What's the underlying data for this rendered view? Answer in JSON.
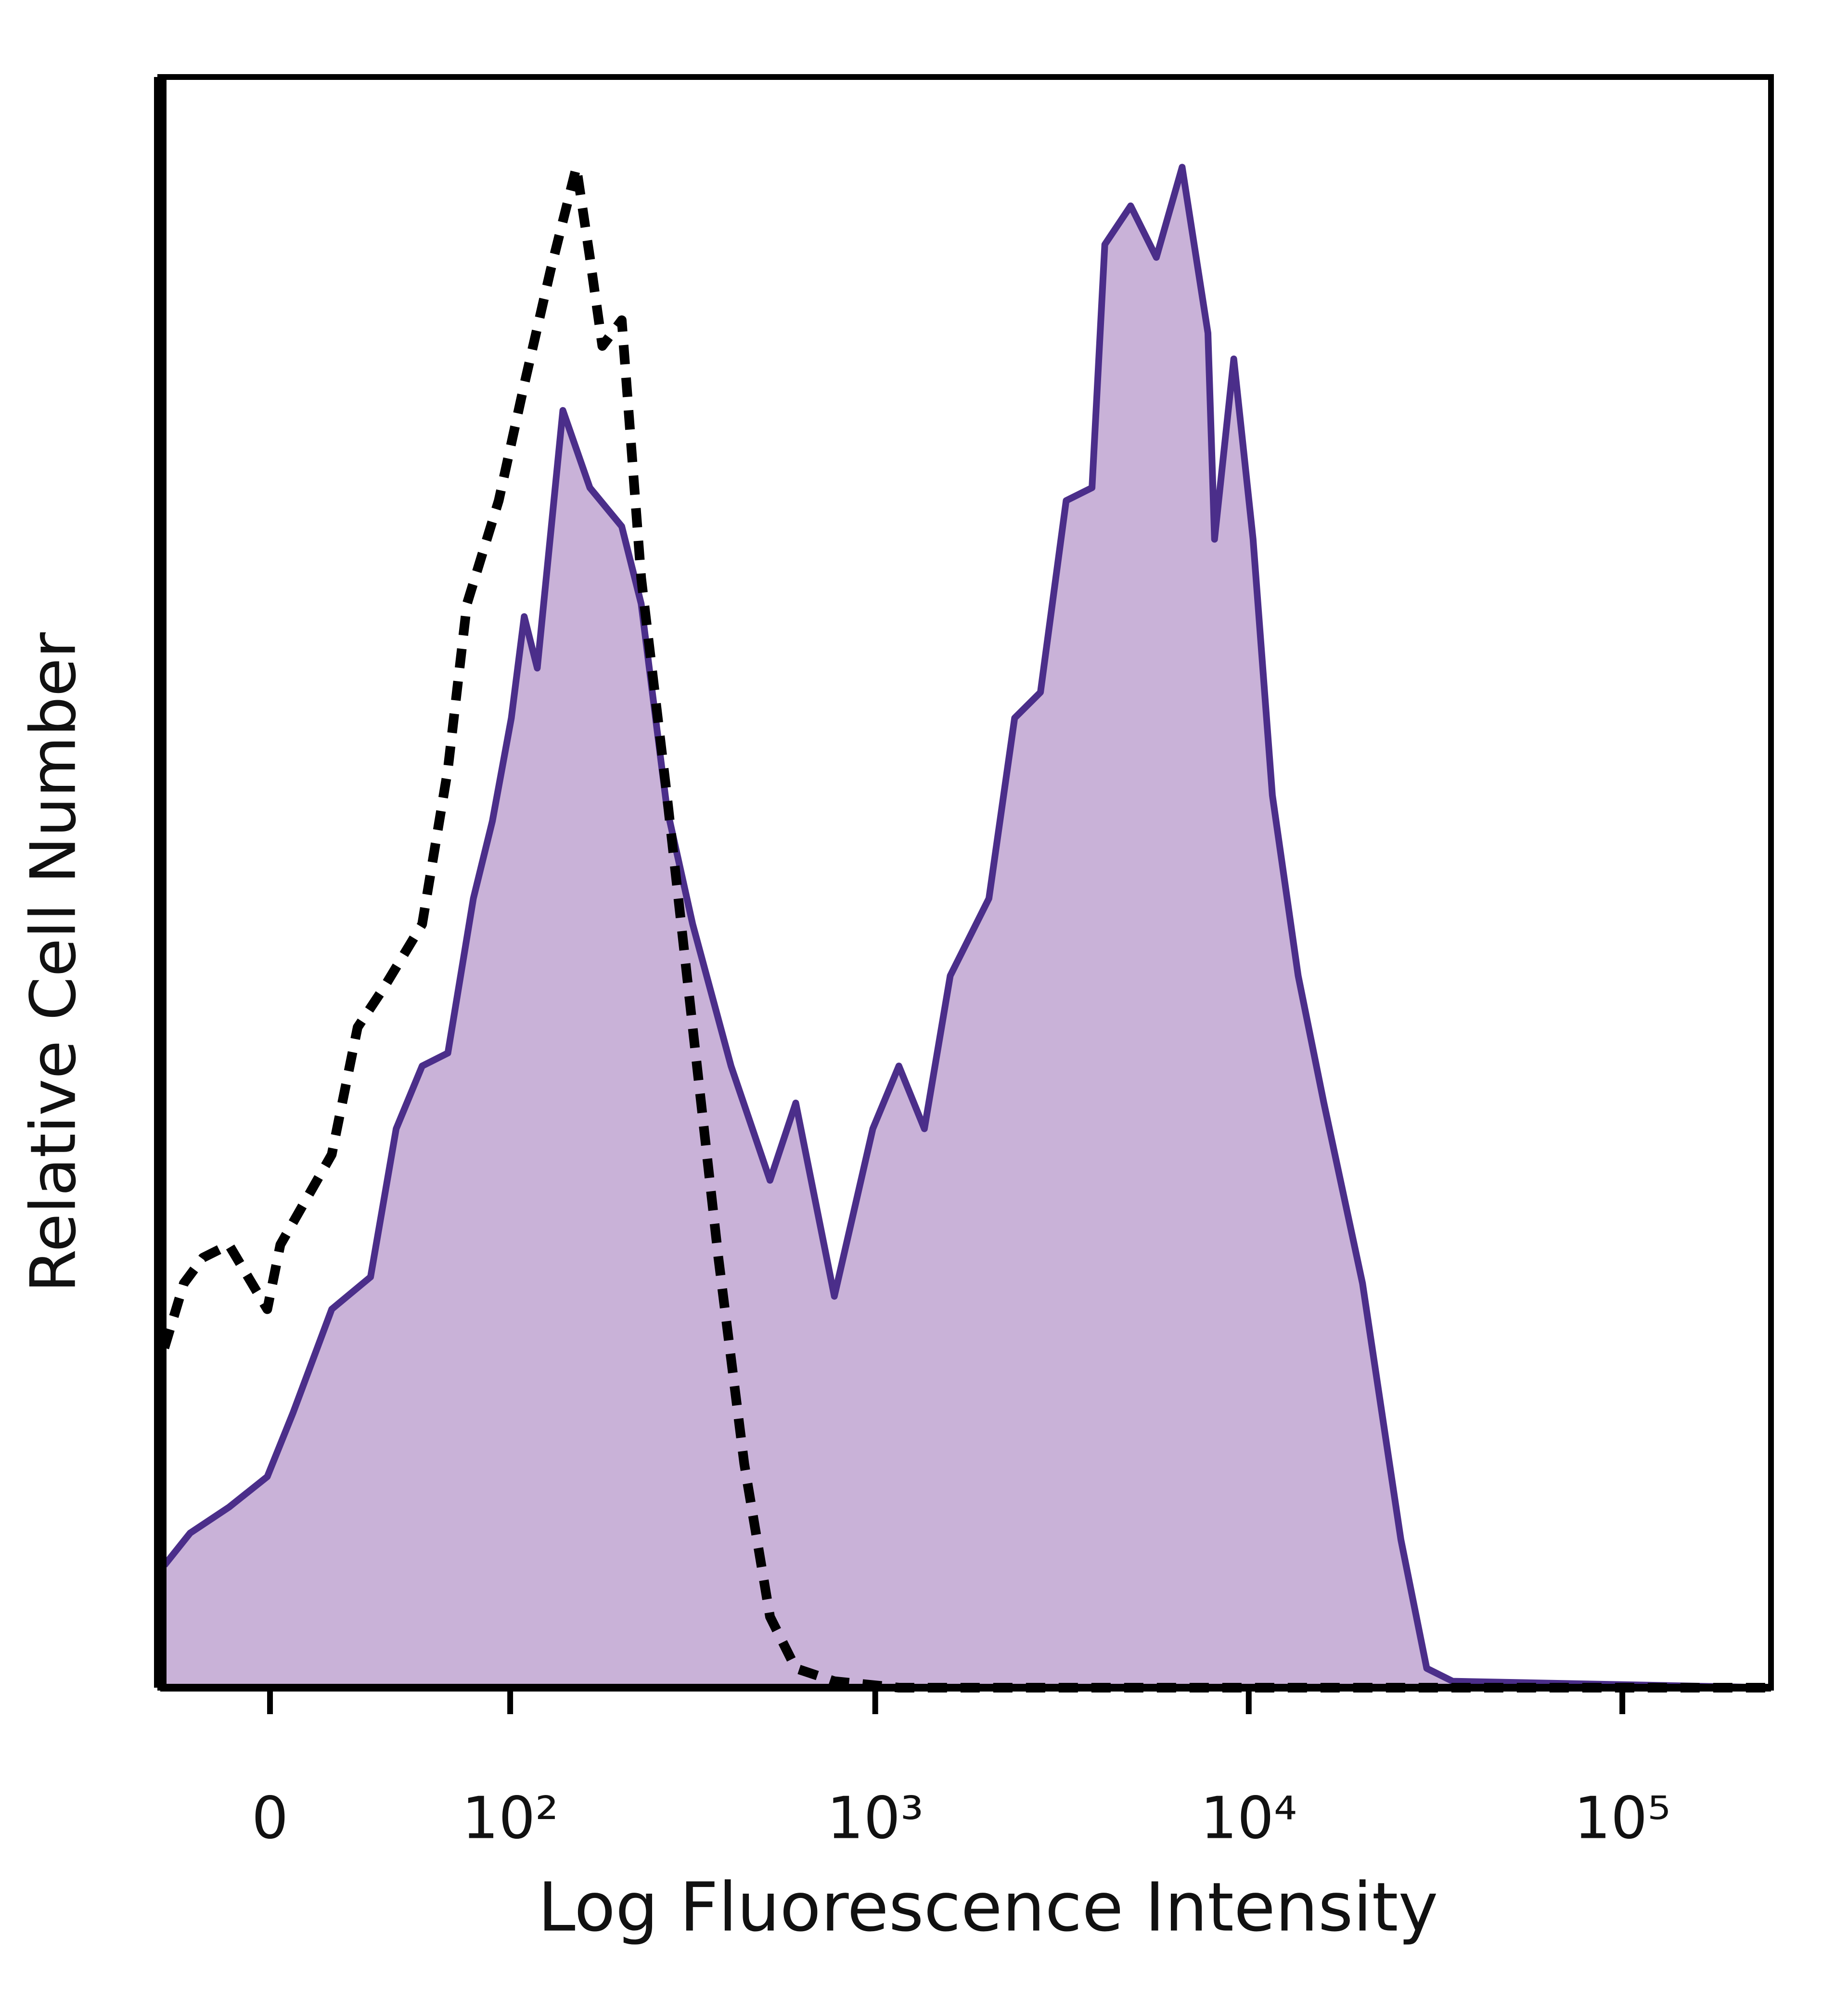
{
  "chart_data": {
    "type": "histogram-overlay",
    "x_label": "Log Fluorescence Intensity",
    "y_label": "Relative Cell Number",
    "xscale": "arcsinh",
    "xlim": [
      -35,
      250000
    ],
    "ylim": [
      0,
      100
    ],
    "xticks": [
      0,
      {
        "value": 100,
        "label": "10²"
      },
      {
        "value": 1000,
        "label": "10³"
      },
      {
        "value": 10000,
        "label": "10⁴"
      },
      {
        "value": 100000,
        "label": "10⁵"
      }
    ],
    "series": [
      {
        "color": "#4b2e8a",
        "fill": "#c9b2d8",
        "dash": false,
        "x": [
          -33.5,
          -24.6,
          -12.3,
          -0.8,
          6.9,
          18.7,
          31.7,
          41.2,
          51.9,
          63.8,
          77.2,
          88.4,
          100.8,
          110,
          120,
          142,
          169,
          207,
          234,
          275,
          323,
          410,
          522,
          612,
          777,
          985,
          1157,
          1354,
          1588,
          2016,
          2362,
          2770,
          3245,
          3806,
          4118,
          4829,
          5659,
          6634,
          7776,
          8098,
          9120,
          10272,
          11568,
          13560,
          15888,
          20160,
          25536,
          29952,
          35136,
          250000
        ],
        "values": [
          7.6,
          9.6,
          11.2,
          13.1,
          17.1,
          23.5,
          25.5,
          34.7,
          38.6,
          39.4,
          49.0,
          53.8,
          60.2,
          66.5,
          63.3,
          79.3,
          74.5,
          72.1,
          67.3,
          54.6,
          47.4,
          38.6,
          31.5,
          36.3,
          24.3,
          34.7,
          38.6,
          34.7,
          44.2,
          49.0,
          60.2,
          61.8,
          73.7,
          74.5,
          89.6,
          92.0,
          88.8,
          94.4,
          84.1,
          71.3,
          82.5,
          71.3,
          55.4,
          44.2,
          36.3,
          25.1,
          9.2,
          1.2,
          0.4,
          0
        ]
      },
      {
        "color": "#000000",
        "fill": null,
        "dash": true,
        "x": [
          -33.5,
          -26.7,
          -20.4,
          -12.3,
          -0.8,
          3.05,
          18.7,
          27.2,
          36.3,
          51.9,
          63.8,
          73.7,
          92.4,
          110,
          131,
          155,
          169,
          183,
          207,
          234,
          275,
          323,
          379,
          445,
          522,
          612,
          777,
          1157,
          250000
        ],
        "values": [
          21.1,
          25.1,
          26.7,
          27.5,
          23.5,
          27.5,
          33.1,
          41.0,
          43.4,
          47.4,
          57.0,
          67.3,
          73.7,
          80.9,
          88.0,
          94.4,
          88.8,
          83.3,
          84.9,
          68.9,
          55.4,
          41.0,
          26.7,
          13.9,
          4.4,
          1.2,
          0.4,
          0,
          0
        ]
      }
    ]
  }
}
